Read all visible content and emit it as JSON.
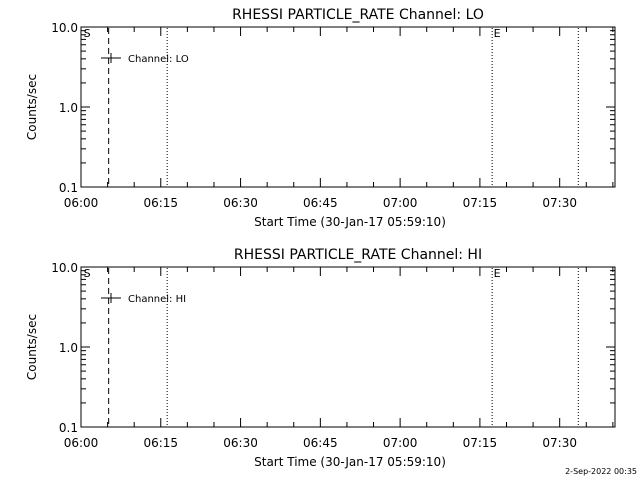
{
  "footer": {
    "timestamp": "2-Sep-2022 00:35"
  },
  "chart_data": [
    {
      "type": "line",
      "title": "RHESSI PARTICLE_RATE Channel: LO",
      "xlabel": "Start Time (30-Jan-17 05:59:10)",
      "ylabel": "Counts/sec",
      "x_ticks": [
        "06:00",
        "06:15",
        "06:30",
        "06:45",
        "07:00",
        "07:15",
        "07:30"
      ],
      "x_tick_minutes": [
        0,
        15,
        30,
        45,
        60,
        75,
        90
      ],
      "xlim_minutes": [
        0,
        100.4
      ],
      "yscale": "log",
      "ylim": [
        0.1,
        10.0
      ],
      "y_ticks": [
        "0.1",
        "1.0",
        "10.0"
      ],
      "y_tick_values": [
        0.1,
        1.0,
        10.0
      ],
      "series": [
        {
          "name": "Channel: LO",
          "values": []
        }
      ],
      "legend": {
        "label": "Channel: LO",
        "placement": "top-left"
      },
      "markers": [
        {
          "label": "S",
          "minute": 0.3,
          "style": "none"
        },
        {
          "label": "E",
          "minute": 77.4,
          "style": "none"
        }
      ],
      "vlines": [
        {
          "minute": 5.2,
          "style": "dashed"
        },
        {
          "minute": 16.2,
          "style": "dotted"
        },
        {
          "minute": 77.3,
          "style": "dotted"
        },
        {
          "minute": 93.5,
          "style": "dotted"
        }
      ]
    },
    {
      "type": "line",
      "title": "RHESSI PARTICLE_RATE Channel: HI",
      "xlabel": "Start Time (30-Jan-17 05:59:10)",
      "ylabel": "Counts/sec",
      "x_ticks": [
        "06:00",
        "06:15",
        "06:30",
        "06:45",
        "07:00",
        "07:15",
        "07:30"
      ],
      "x_tick_minutes": [
        0,
        15,
        30,
        45,
        60,
        75,
        90
      ],
      "xlim_minutes": [
        0,
        100.4
      ],
      "yscale": "log",
      "ylim": [
        0.1,
        10.0
      ],
      "y_ticks": [
        "0.1",
        "1.0",
        "10.0"
      ],
      "y_tick_values": [
        0.1,
        1.0,
        10.0
      ],
      "series": [
        {
          "name": "Channel: HI",
          "values": []
        }
      ],
      "legend": {
        "label": "Channel: HI",
        "placement": "top-left"
      },
      "markers": [
        {
          "label": "S",
          "minute": 0.3,
          "style": "none"
        },
        {
          "label": "E",
          "minute": 77.4,
          "style": "none"
        }
      ],
      "vlines": [
        {
          "minute": 5.2,
          "style": "dashed"
        },
        {
          "minute": 16.2,
          "style": "dotted"
        },
        {
          "minute": 77.3,
          "style": "dotted"
        },
        {
          "minute": 93.5,
          "style": "dotted"
        }
      ]
    }
  ]
}
